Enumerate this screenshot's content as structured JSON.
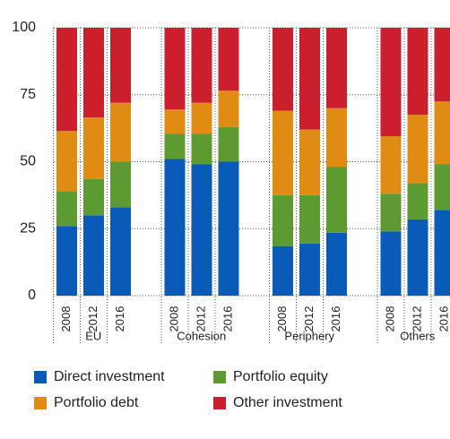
{
  "chart_data": {
    "type": "stacked_bar",
    "categories": [
      "2008",
      "2012",
      "2016",
      "2008",
      "2012",
      "2016",
      "2008",
      "2012",
      "2016",
      "2008",
      "2012",
      "2016"
    ],
    "groups": [
      "EU",
      "Cohesion",
      "Periphery",
      "Others"
    ],
    "series": [
      {
        "name": "Direct investment",
        "color": "#0a5bb8",
        "values": [
          26,
          30,
          33,
          51,
          49,
          50,
          18.5,
          19.5,
          23.5,
          24,
          28.5,
          32
        ]
      },
      {
        "name": "Portfolio equity",
        "color": "#5d9b32",
        "values": [
          13,
          13.5,
          17,
          9.5,
          11.5,
          13,
          19,
          18,
          24.5,
          14,
          13.5,
          17
        ]
      },
      {
        "name": "Portfolio debt",
        "color": "#e08b14",
        "values": [
          22.5,
          23,
          22,
          9,
          11.5,
          13.5,
          31.5,
          24.5,
          22,
          21.5,
          25.5,
          23.5
        ]
      },
      {
        "name": "Other investment",
        "color": "#cc1f2e",
        "values": [
          38.5,
          33.5,
          28,
          30.5,
          28,
          23.5,
          31,
          38,
          30,
          40.5,
          32.5,
          27.5
        ]
      }
    ],
    "ylim": [
      0,
      100
    ],
    "yticks": [
      0,
      25,
      50,
      75,
      100
    ],
    "grid": true
  }
}
